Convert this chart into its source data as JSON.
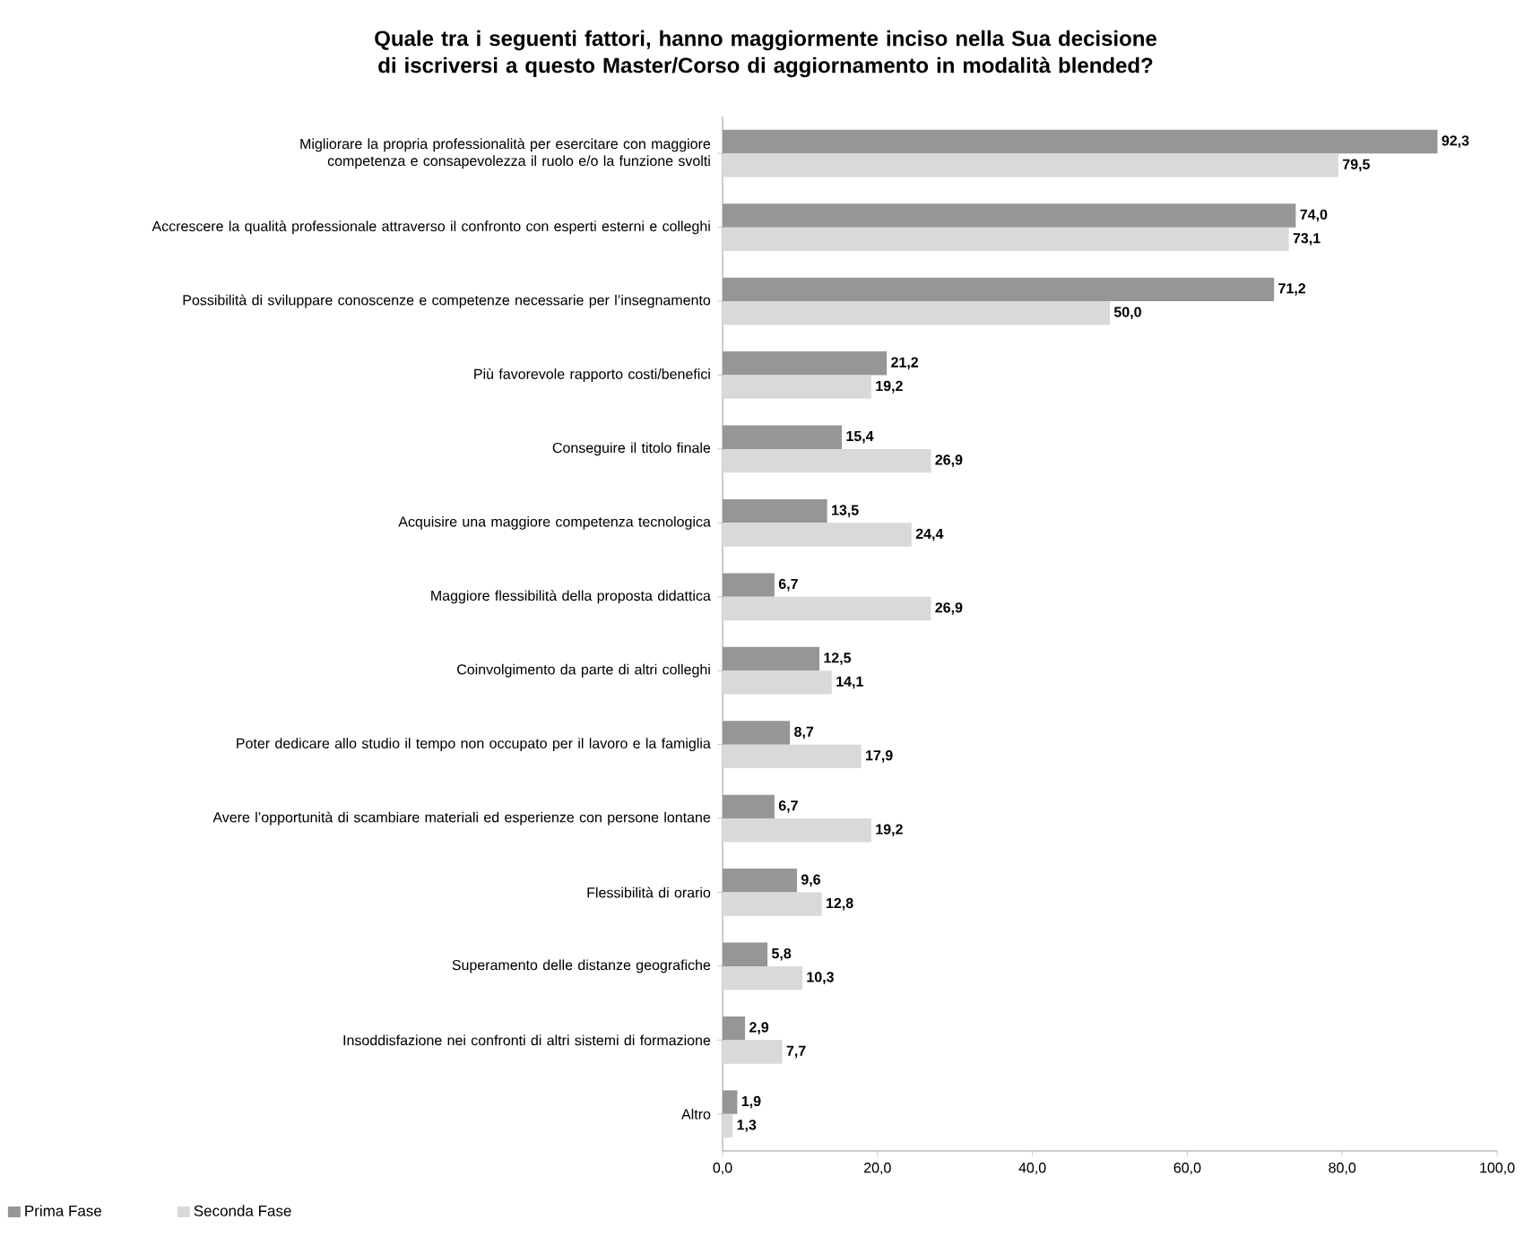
{
  "chart_data": {
    "type": "bar",
    "orientation": "horizontal",
    "title": "Quale tra i seguenti fattori, hanno maggiormente inciso nella Sua decisione di iscriversi a questo Master/Corso di aggiornamento in modalità blended?",
    "categories": [
      "Migliorare la propria professionalità per esercitare con maggiore competenza e consapevolezza il ruolo e/o la funzione svolti",
      "Accrescere la qualità professionale attraverso il confronto con esperti esterni e colleghi",
      "Possibilità di sviluppare conoscenze e competenze necessarie per l’insegnamento",
      "Più favorevole rapporto costi/benefici",
      "Conseguire il titolo finale",
      "Acquisire una maggiore competenza tecnologica",
      "Maggiore flessibilità della proposta didattica",
      "Coinvolgimento da parte di altri colleghi",
      "Poter dedicare allo studio il tempo non occupato per il lavoro e la famiglia",
      "Avere l’opportunità di scambiare materiali ed esperienze con persone lontane",
      "Flessibilità di orario",
      "Superamento delle distanze geografiche",
      "Insoddisfazione nei confronti di altri sistemi di formazione",
      "Altro"
    ],
    "series": [
      {
        "name": "Prima Fase",
        "color": "#969696",
        "values": [
          92.3,
          74.0,
          71.2,
          21.2,
          15.4,
          13.5,
          6.7,
          12.5,
          8.7,
          6.7,
          9.6,
          5.8,
          2.9,
          1.9
        ],
        "value_labels": [
          "92,3",
          "74,0",
          "71,2",
          "21,2",
          "15,4",
          "13,5",
          "6,7",
          "12,5",
          "8,7",
          "6,7",
          "9,6",
          "5,8",
          "2,9",
          "1,9"
        ]
      },
      {
        "name": "Seconda Fase",
        "color": "#d9d9d9",
        "values": [
          79.5,
          73.1,
          50.0,
          19.2,
          26.9,
          24.4,
          26.9,
          14.1,
          17.9,
          19.2,
          12.8,
          10.3,
          7.7,
          1.3
        ],
        "value_labels": [
          "79,5",
          "73,1",
          "50,0",
          "19,2",
          "26,9",
          "24,4",
          "26,9",
          "14,1",
          "17,9",
          "19,2",
          "12,8",
          "10,3",
          "7,7",
          "1,3"
        ]
      }
    ],
    "xlim": [
      0,
      100
    ],
    "xticks": [
      {
        "value": 0,
        "label": "0,0"
      },
      {
        "value": 20,
        "label": "20,0"
      },
      {
        "value": 40,
        "label": "40,0"
      },
      {
        "value": 60,
        "label": "60,0"
      },
      {
        "value": 80,
        "label": "80,0"
      },
      {
        "value": 100,
        "label": "100,0"
      }
    ],
    "legend": "bottom left"
  }
}
